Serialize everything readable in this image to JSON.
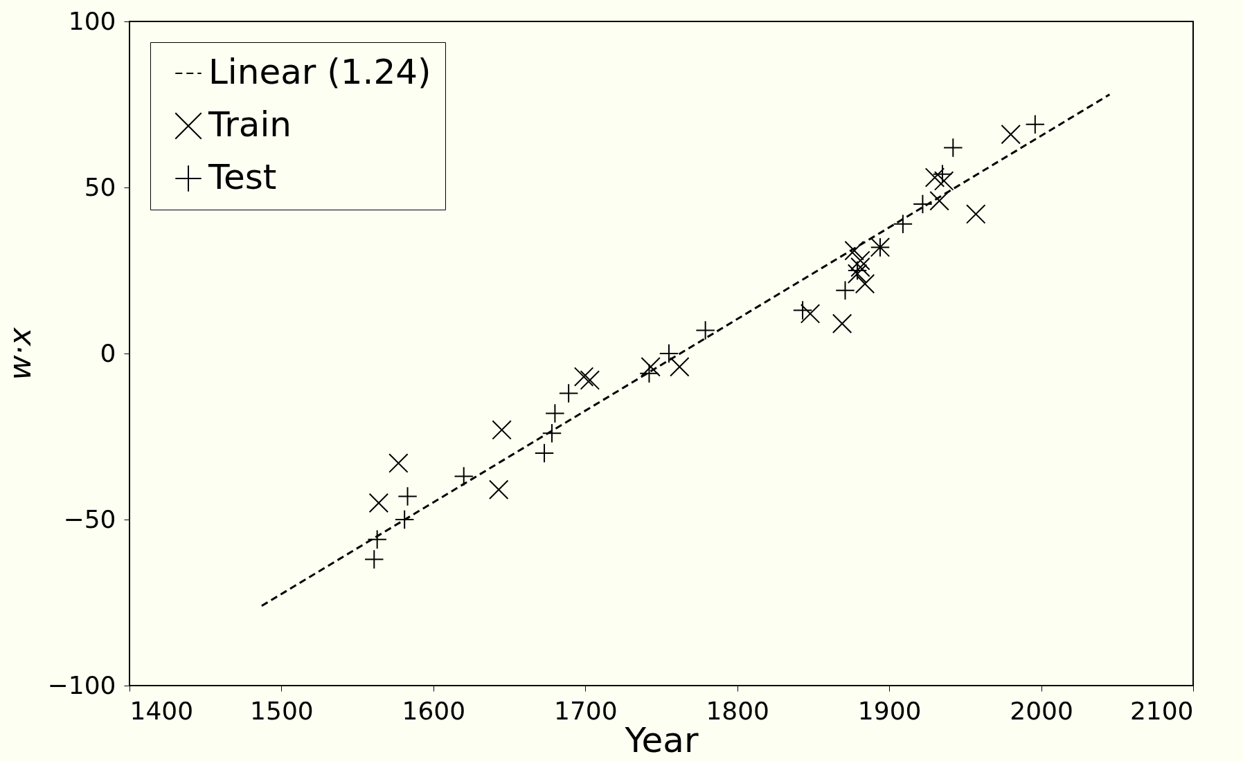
{
  "chart_data": {
    "type": "scatter",
    "xlabel": "Year",
    "ylabel": "w·x",
    "xlim": [
      1400,
      2100
    ],
    "xticks": [
      1400,
      1500,
      1600,
      1700,
      1800,
      1900,
      2000,
      2100
    ],
    "ylim": [
      -100,
      100
    ],
    "yticks": [
      -100,
      -50,
      0,
      50,
      100
    ],
    "grid": false,
    "legend": "top left",
    "series": [
      {
        "name": "Linear (1.24)",
        "type": "line",
        "line_style": "dashed",
        "marker": "none",
        "color": "#000000",
        "x": [
          1487,
          2045
        ],
        "values": [
          -76,
          78
        ]
      },
      {
        "name": "Train",
        "marker": "cross",
        "color": "#000000",
        "x": [
          1564,
          1577,
          1645,
          1643,
          1699,
          1703,
          1743,
          1762,
          1848,
          1869,
          1877,
          1879,
          1881,
          1881,
          1884,
          1894,
          1930,
          1936,
          1933,
          1957,
          1980
        ],
        "values": [
          -45,
          -33,
          -23,
          -41,
          -7,
          -8,
          -4,
          -4,
          12,
          9,
          31,
          24,
          28,
          26,
          21,
          32,
          53,
          52,
          46,
          42,
          66
        ]
      },
      {
        "name": "Test",
        "color": "#000000",
        "x": [
          1561,
          1563,
          1581,
          1583,
          1620,
          1673,
          1678,
          1680,
          1689,
          1742,
          1755,
          1779,
          1843,
          1871,
          1879,
          1894,
          1909,
          1922,
          1935,
          1942,
          1996
        ],
        "values": [
          -62,
          -56,
          -50,
          -43,
          -37,
          -30,
          -24,
          -18,
          -12,
          -6,
          0,
          7,
          13,
          19,
          25,
          32,
          39,
          45,
          54,
          62,
          69
        ]
      }
    ]
  }
}
